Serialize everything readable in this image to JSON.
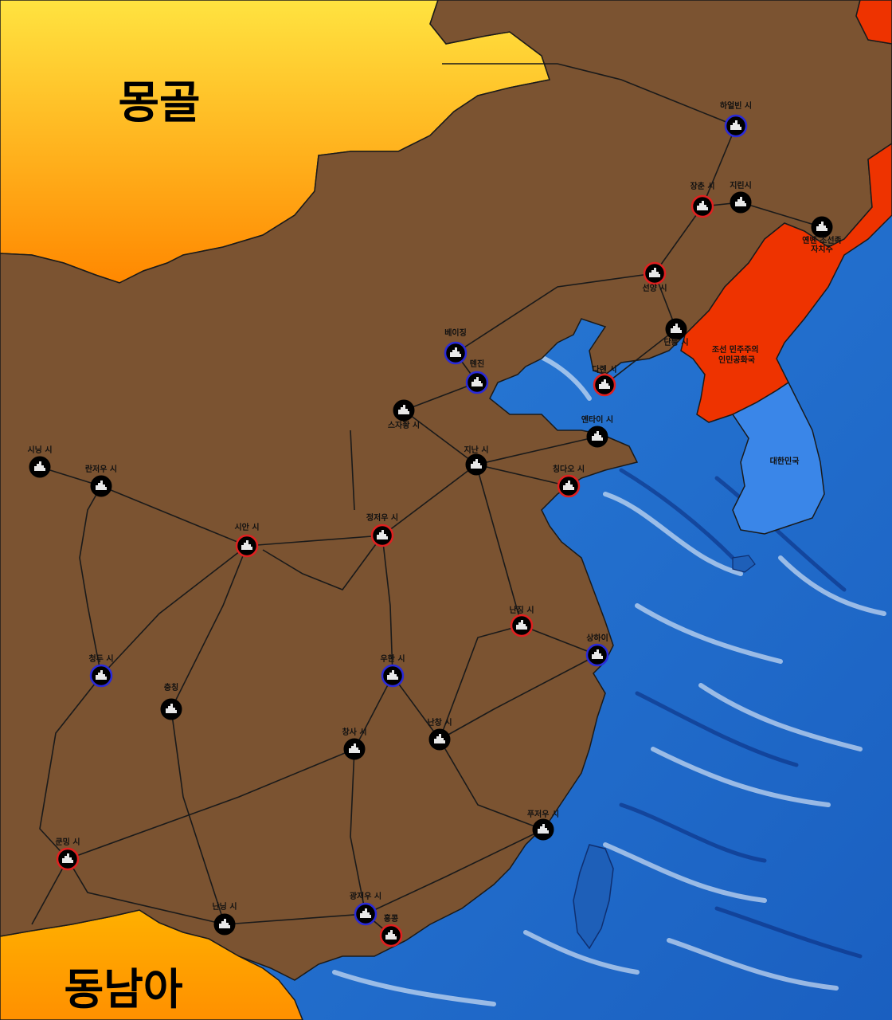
{
  "regions": {
    "mongolia": "몽골",
    "southeast_asia": "동남아",
    "north_korea": "조선 민주주의\n인민공화국",
    "south_korea": "대한민국"
  },
  "colors": {
    "china_land": "#7b5331",
    "mongolia_top": "#ffe340",
    "mongolia_bottom": "#ff8a00",
    "north_korea": "#ee3300",
    "south_korea": "#3a86e8",
    "sea": "#1e6ecb",
    "ring_red": "#e02020",
    "ring_blue": "#2a2ad8",
    "ring_none": "#000000"
  },
  "cities": [
    {
      "id": "harbin",
      "name": "하얼빈 시",
      "ring": "blue"
    },
    {
      "id": "changchun",
      "name": "장춘 시",
      "ring": "red"
    },
    {
      "id": "jilin",
      "name": "지린시",
      "ring": "none"
    },
    {
      "id": "yanbian",
      "name": "옌볜 조선족\n자치주",
      "ring": "none"
    },
    {
      "id": "shenyang",
      "name": "선양 시",
      "ring": "red"
    },
    {
      "id": "dandong",
      "name": "단둥 시",
      "ring": "none"
    },
    {
      "id": "dalian",
      "name": "다롄 시",
      "ring": "red"
    },
    {
      "id": "beijing",
      "name": "베이징",
      "ring": "blue"
    },
    {
      "id": "tianjin",
      "name": "톈진",
      "ring": "blue"
    },
    {
      "id": "shijiazhuang",
      "name": "스자좡 시",
      "ring": "none"
    },
    {
      "id": "yantai",
      "name": "옌타이 시",
      "ring": "none"
    },
    {
      "id": "jinan",
      "name": "지난 시",
      "ring": "none"
    },
    {
      "id": "qingdao",
      "name": "칭다오 시",
      "ring": "red"
    },
    {
      "id": "xining",
      "name": "시닝 시",
      "ring": "none"
    },
    {
      "id": "lanzhou",
      "name": "란저우 시",
      "ring": "none"
    },
    {
      "id": "xian",
      "name": "시안 시",
      "ring": "red"
    },
    {
      "id": "zhengzhou",
      "name": "정저우 시",
      "ring": "red"
    },
    {
      "id": "nanjing",
      "name": "난징 시",
      "ring": "red"
    },
    {
      "id": "shanghai",
      "name": "상하이",
      "ring": "blue"
    },
    {
      "id": "chengdu",
      "name": "청두 시",
      "ring": "blue"
    },
    {
      "id": "wuhan",
      "name": "우한 시",
      "ring": "blue"
    },
    {
      "id": "chongqing",
      "name": "충칭",
      "ring": "none"
    },
    {
      "id": "changsha",
      "name": "창사 시",
      "ring": "none"
    },
    {
      "id": "nanchang",
      "name": "난창 시",
      "ring": "none"
    },
    {
      "id": "fuzhou",
      "name": "푸저우 시",
      "ring": "none"
    },
    {
      "id": "kunming",
      "name": "쿤밍 시",
      "ring": "red"
    },
    {
      "id": "nanning",
      "name": "난닝 시",
      "ring": "none"
    },
    {
      "id": "guangzhou",
      "name": "광저우 시",
      "ring": "blue"
    },
    {
      "id": "hongkong",
      "name": "홍콩",
      "ring": "red"
    }
  ]
}
